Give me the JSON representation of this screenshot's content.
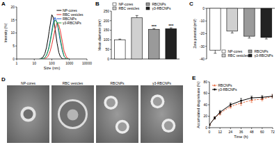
{
  "chart_data": [
    {
      "type": "line",
      "title": "A",
      "x_label": "Size (nm)",
      "y_label": "Intensity (%)",
      "log": "x",
      "x": [
        20,
        30,
        40,
        50,
        60,
        70,
        80,
        100,
        120,
        150,
        200,
        250,
        300,
        400,
        500,
        700,
        1000
      ],
      "xlim": [
        1,
        10000
      ],
      "xticks": [
        1,
        10,
        100,
        1000,
        10000
      ],
      "ylim": [
        0,
        20
      ],
      "yticks": [
        0,
        5,
        10,
        15,
        20
      ],
      "legend": "upper right",
      "series": [
        {
          "name": "NP-cores",
          "color": "#000000",
          "values": [
            0,
            0.5,
            2,
            4.5,
            7.5,
            10.5,
            13,
            17,
            16,
            12,
            6,
            2.5,
            1,
            0,
            0,
            0,
            0
          ]
        },
        {
          "name": "RBC vesicles",
          "color": "#e8312f",
          "values": [
            0,
            0,
            0,
            0.5,
            1,
            2,
            3,
            5.5,
            8,
            11,
            14,
            13,
            11,
            6.5,
            3,
            0.5,
            0
          ]
        },
        {
          "name": "RBCNPs",
          "color": "#2b5fd9",
          "values": [
            0,
            0,
            0.5,
            1.5,
            3,
            5,
            7,
            11,
            14,
            16,
            14,
            10,
            7,
            3,
            1,
            0,
            0
          ]
        },
        {
          "name": "γ3-RBCNPs",
          "color": "#1a9e3a",
          "values": [
            0,
            0,
            0.5,
            1.5,
            3,
            4.5,
            6.5,
            10,
            13,
            15,
            14,
            11,
            8,
            3.5,
            1,
            0,
            0
          ]
        }
      ]
    },
    {
      "type": "bar",
      "title": "B",
      "y_label": "Mean diameter (nm)",
      "categories": [
        "NP-cores",
        "RBC vesicles",
        "RBCNPs",
        "γ3-RBCNPs"
      ],
      "values": [
        100,
        215,
        155,
        158
      ],
      "errors": [
        4,
        12,
        4,
        5
      ],
      "colors": [
        "#ffffff",
        "#d0d0d0",
        "#9a9a9a",
        "#222222"
      ],
      "ylim": [
        0,
        250
      ],
      "yticks": [
        0,
        50,
        100,
        150,
        200,
        250
      ],
      "tick_labels": "y",
      "legend": "top",
      "annotations": [
        {
          "category": "RBCNPs",
          "text": "***"
        },
        {
          "category": "γ3-RBCNPs",
          "text": "***"
        }
      ]
    },
    {
      "type": "bar",
      "title": "C",
      "y_label": "Zeta potential (mV)",
      "categories": [
        "NP-cores",
        "RBC vesicles",
        "RBCNPs",
        "γ3-RBCNPs"
      ],
      "values": [
        -33,
        -18,
        -22,
        -23
      ],
      "errors": [
        2.5,
        1.5,
        1.5,
        1.2
      ],
      "colors": [
        "#ffffff",
        "#d0d0d0",
        "#9a9a9a",
        "#222222"
      ],
      "ylim": [
        -40,
        0
      ],
      "yticks": [
        -40,
        -30,
        -20,
        -10,
        0
      ],
      "tick_labels": "y",
      "legend": "lower right"
    },
    {
      "type": "line",
      "title": "E",
      "x_label": "Time (h)",
      "y_label": "Accumulated drug release (%)",
      "x": [
        0,
        6,
        12,
        24,
        36,
        48,
        60,
        72
      ],
      "xlim": [
        0,
        72
      ],
      "xticks": [
        0,
        12,
        24,
        36,
        48,
        60,
        72
      ],
      "ylim": [
        0,
        80
      ],
      "yticks": [
        0,
        20,
        40,
        60,
        80
      ],
      "legend": "upper left",
      "series": [
        {
          "name": "RBCNPs",
          "color": "#e8663a",
          "marker": "triangle",
          "line_style": "dashed",
          "values": [
            5,
            17,
            25,
            37,
            43,
            48,
            50,
            55
          ],
          "errors": [
            1,
            2,
            3,
            3,
            4,
            4,
            3,
            3
          ]
        },
        {
          "name": "γ3-RBCNPs",
          "color": "#000000",
          "marker": "circle",
          "line_style": "solid",
          "values": [
            5,
            17,
            27,
            40,
            47,
            52,
            53,
            55
          ],
          "errors": [
            1,
            2,
            3,
            3,
            4,
            3,
            3,
            3
          ]
        }
      ]
    }
  ],
  "micrographs": {
    "title": "D",
    "labels": [
      "NP-cores",
      "RBC vesicles",
      "RBCNPs",
      "γ3-RBCNPs"
    ]
  }
}
